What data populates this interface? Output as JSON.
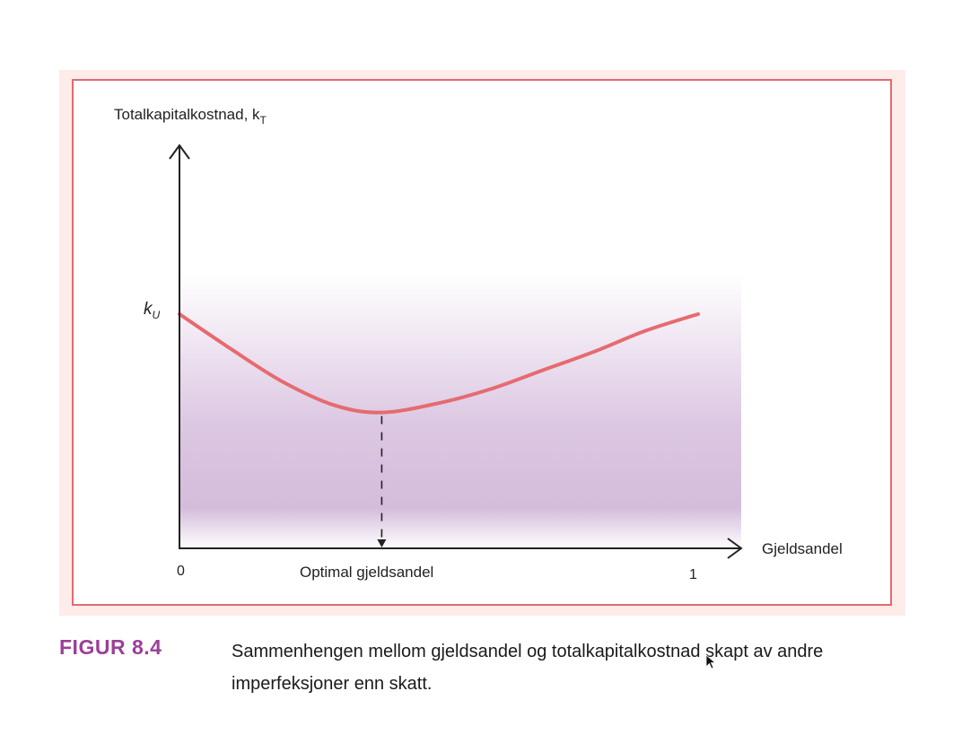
{
  "figure": {
    "label": "FIGUR 8.4",
    "caption": "Sammenhengen mellom gjeldsandel og totalkapitalkostnad skapt av andre imperfeksjoner enn skatt."
  },
  "colors": {
    "curve": "#e56b70",
    "frame_border": "#e26a6f",
    "frame_fill": "#fdecea",
    "shade_top": "#ffffff",
    "shade_mid": "#d6c0de",
    "label_purple": "#9b3f98"
  },
  "chart_data": {
    "type": "line",
    "ylabel": "Totalkapitalkostnad, k",
    "ylabel_sub": "T",
    "xlabel": "Gjeldsandel",
    "xticks": [
      "0",
      "1"
    ],
    "ytick_label": "k",
    "ytick_sub": "U",
    "optimum_label": "Optimal gjeldsandel",
    "xlim": [
      0,
      1
    ],
    "ylim": [
      0,
      1.6
    ],
    "series": [
      {
        "x": [
          0,
          0.1,
          0.2,
          0.3,
          0.39,
          0.5,
          0.6,
          0.7,
          0.8,
          0.9,
          1.0
        ],
        "values": [
          1.0,
          0.85,
          0.71,
          0.61,
          0.58,
          0.62,
          0.68,
          0.76,
          0.84,
          0.93,
          1.0
        ]
      }
    ],
    "optimum_x": 0.39,
    "grid": false,
    "legend": "none"
  }
}
